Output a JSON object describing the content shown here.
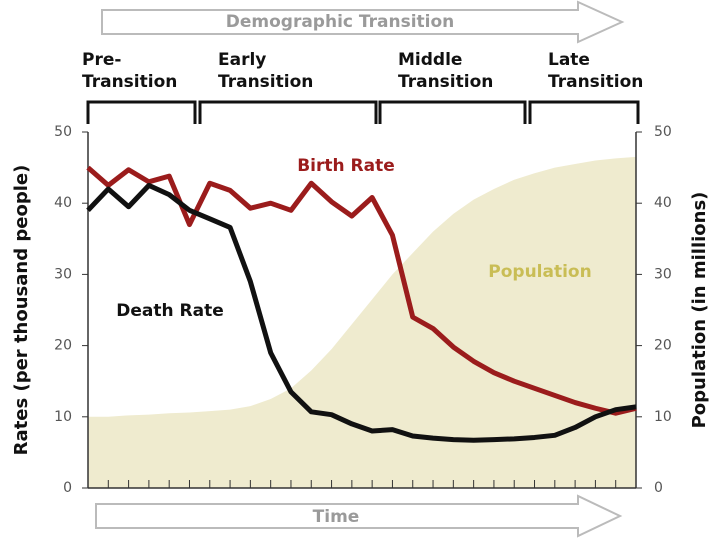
{
  "chart_data": {
    "type": "line",
    "title": "Demographic Transition",
    "x_label": "Time",
    "y_label": "Rates (per thousand people)",
    "y2_label": "Population (in millions)",
    "stages": [
      [
        "Pre-",
        "Transition"
      ],
      [
        "Early",
        "Transition"
      ],
      [
        "Middle",
        "Transition"
      ],
      [
        "Late",
        "Transition"
      ]
    ],
    "categories": [
      null,
      null,
      null,
      null,
      null,
      null,
      null,
      null,
      null,
      null,
      null,
      null,
      null,
      null,
      null,
      null,
      null,
      null,
      null,
      null,
      null,
      null,
      null,
      null,
      null,
      null,
      null,
      null
    ],
    "ylim": [
      0,
      50
    ],
    "yticks": [
      0,
      10,
      20,
      30,
      40,
      50
    ],
    "y2lim": [
      0,
      50
    ],
    "y2ticks": [
      0,
      10,
      20,
      30,
      40,
      50
    ],
    "series": [
      {
        "name": "Population",
        "color": "#efebcf",
        "label_color": "#c9bd55",
        "kind": "area",
        "axis": "y2",
        "values": [
          10,
          10,
          10.2,
          10.3,
          10.5,
          10.6,
          10.8,
          11,
          11.5,
          12.5,
          14,
          16.5,
          19.5,
          23,
          26.5,
          30,
          33,
          36,
          38.5,
          40.5,
          42,
          43.3,
          44.2,
          45,
          45.5,
          46,
          46.3,
          46.5
        ]
      },
      {
        "name": "Birth Rate",
        "color": "#9b1c1c",
        "label_color": "#9b1c1c",
        "kind": "line",
        "values": [
          45,
          42.5,
          44.7,
          43,
          43.8,
          37,
          42.8,
          41.8,
          39.3,
          40,
          39,
          42.8,
          40.2,
          38.2,
          40.8,
          35.5,
          24,
          22.4,
          19.8,
          17.8,
          16.2,
          15,
          14,
          13,
          12,
          11.2,
          10.5,
          11.2
        ]
      },
      {
        "name": "Death Rate",
        "color": "#111111",
        "label_color": "#111111",
        "kind": "line",
        "values": [
          39,
          42,
          39.5,
          42.5,
          41.2,
          39,
          37.8,
          36.6,
          29,
          19,
          13.5,
          10.7,
          10.3,
          9,
          8,
          8.2,
          7.3,
          7,
          6.8,
          6.7,
          6.8,
          6.9,
          7.1,
          7.4,
          8.5,
          10,
          11,
          11.4
        ]
      }
    ]
  }
}
